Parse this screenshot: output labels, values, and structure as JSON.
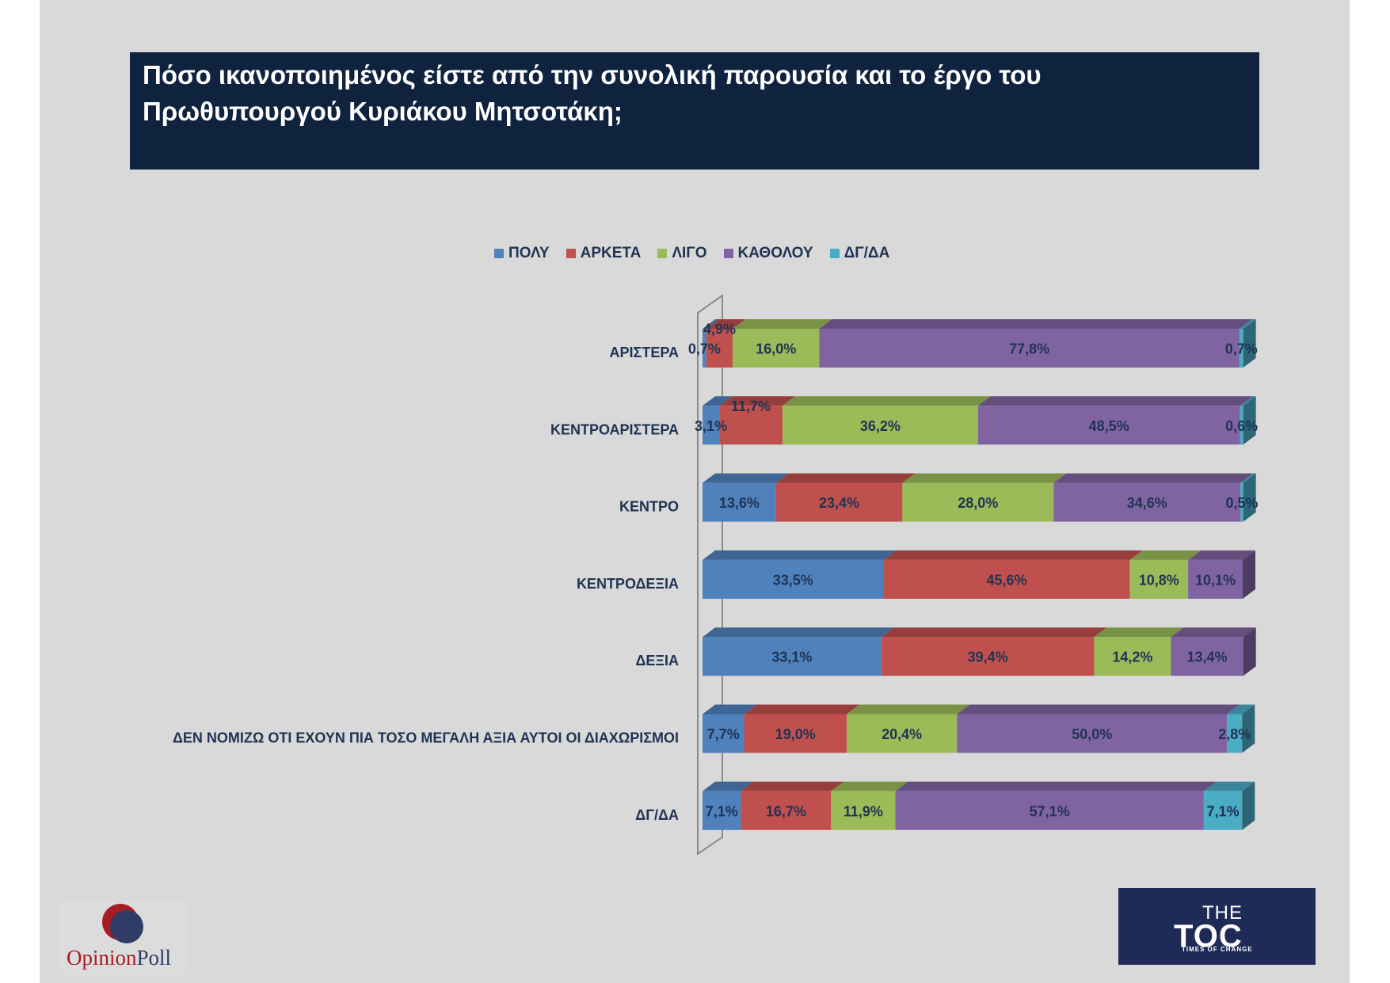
{
  "title": {
    "line1": "Πόσο ικανοποιημένος είστε από την συνολική παρουσία και το έργο του",
    "line2": "Πρωθυπουργού Κυριάκου Μητσοτάκη;"
  },
  "colors": {
    "slide_bg": "#d9d9d9",
    "title_bg": "#0f233f",
    "label_text": "#1f3352"
  },
  "chart_data": {
    "type": "bar",
    "orientation": "horizontal",
    "stacked": true,
    "style": "3d",
    "legend_position": "top",
    "grid": false,
    "xlim": [
      0,
      100
    ],
    "categories": [
      "ΑΡΙΣΤΕΡΑ",
      "ΚΕΝΤΡΟΑΡΙΣΤΕΡΑ",
      "ΚΕΝΤΡΟ",
      "ΚΕΝΤΡΟΔΕΞΙΑ",
      "ΔΕΞΙΑ",
      "ΔΕΝ ΝΟΜΙΖΩ ΟΤΙ ΕΧΟΥΝ ΠΙΑ ΤΟΣΟ ΜΕΓΑΛΗ ΑΞΙΑ ΑΥΤΟΙ ΟΙ ΔΙΑΧΩΡΙΣΜΟΙ",
      "ΔΓ/ΔΑ"
    ],
    "series": [
      {
        "name": "ΠΟΛΥ",
        "color": "#4f81bd",
        "values": [
          0.7,
          3.1,
          13.6,
          33.5,
          33.1,
          7.7,
          7.1
        ]
      },
      {
        "name": "ΑΡΚΕΤΑ",
        "color": "#c0504d",
        "values": [
          4.9,
          11.7,
          23.4,
          45.6,
          39.4,
          19.0,
          16.7
        ]
      },
      {
        "name": "ΛΙΓΟ",
        "color": "#9bbb59",
        "values": [
          16.0,
          36.2,
          28.0,
          10.8,
          14.2,
          20.4,
          11.9
        ]
      },
      {
        "name": "ΚΑΘΟΛΟΥ",
        "color": "#8064a2",
        "values": [
          77.8,
          48.5,
          34.6,
          10.1,
          13.4,
          50.0,
          57.1
        ]
      },
      {
        "name": "ΔΓ/ΔΑ",
        "color": "#4bacc6",
        "values": [
          0.7,
          0.6,
          0.5,
          null,
          null,
          2.8,
          7.1
        ]
      }
    ]
  },
  "logos": {
    "opinionpoll": {
      "part1": "Opinion",
      "part2": "Poll"
    },
    "toc": {
      "the": "THE",
      "main": "TOC",
      "tagline": "TIMES OF CHANGE"
    }
  }
}
